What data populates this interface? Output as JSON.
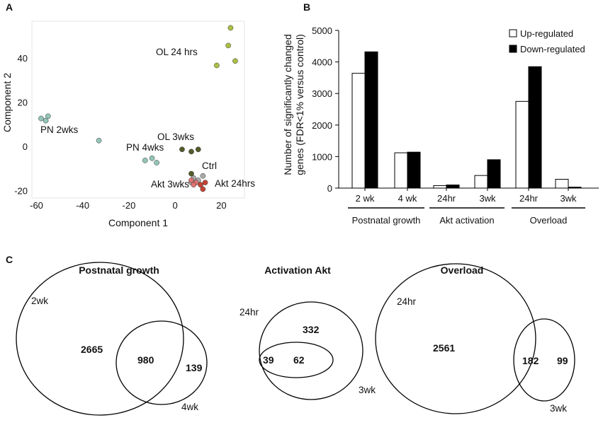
{
  "panels": {
    "a": "A",
    "b": "B",
    "c": "C"
  },
  "chart_data": [
    {
      "type": "scatter",
      "panel": "A",
      "xlabel": "Component 1",
      "ylabel": "Component 2",
      "xlim": [
        -62,
        30
      ],
      "ylim": [
        -23,
        57
      ],
      "xticks": [
        -60,
        -40,
        -20,
        0,
        20
      ],
      "yticks": [
        -20,
        0,
        20,
        40
      ],
      "grid": false,
      "series": [
        {
          "name": "OL 24 hrs",
          "color": "#a6ba3a",
          "points": [
            [
              24,
              54
            ],
            [
              23,
              46
            ],
            [
              26,
              39
            ],
            [
              18,
              37
            ]
          ]
        },
        {
          "name": "PN 2wks",
          "color": "#8ec2b4",
          "points": [
            [
              -58,
              13
            ],
            [
              -56,
              12
            ],
            [
              -55,
              14
            ],
            [
              -33,
              3
            ]
          ]
        },
        {
          "name": "PN 4wks",
          "color": "#8ec2b4",
          "points": [
            [
              -13,
              -6
            ],
            [
              -10,
              -5
            ],
            [
              -8,
              -7
            ]
          ]
        },
        {
          "name": "OL 3wks",
          "color": "#4a5220",
          "points": [
            [
              3,
              -1
            ],
            [
              7,
              -2
            ],
            [
              10,
              -1
            ],
            [
              7,
              -12
            ]
          ]
        },
        {
          "name": "Ctrl",
          "color": "#a4a4a4",
          "points": [
            [
              8,
              -14
            ],
            [
              10,
              -15
            ],
            [
              12,
              -13
            ],
            [
              7,
              -16
            ]
          ]
        },
        {
          "name": "Akt 3wks",
          "color": "#e07070",
          "points": [
            [
              7,
              -15
            ],
            [
              9,
              -16
            ],
            [
              8,
              -17
            ]
          ]
        },
        {
          "name": "Akt 24hrs",
          "color": "#c0392b",
          "points": [
            [
              11,
              -17
            ],
            [
              13,
              -16
            ],
            [
              12,
              -19
            ]
          ]
        }
      ],
      "point_labels": [
        "OL 24 hrs",
        "PN 2wks",
        "PN 4wks",
        "OL 3wks",
        "Ctrl",
        "Akt 3wks",
        "Akt 24hrs"
      ]
    },
    {
      "type": "bar",
      "panel": "B",
      "ylabel_lines": [
        "Number of significantly changed",
        "genes (FDR<1% versus control)"
      ],
      "ylim": [
        0,
        5000
      ],
      "yticks": [
        0,
        1000,
        2000,
        3000,
        4000,
        5000
      ],
      "categories": [
        "2 wk",
        "4 wk",
        "24hr",
        "3wk",
        "24hr",
        "3wk"
      ],
      "groups": [
        {
          "label": "Postnatal growth",
          "span": [
            0,
            1
          ]
        },
        {
          "label": "Akt activation",
          "span": [
            2,
            3
          ]
        },
        {
          "label": "Overload",
          "span": [
            4,
            5
          ]
        }
      ],
      "series": [
        {
          "name": "Up-regulated",
          "color": "#ffffff",
          "values": [
            3640,
            1120,
            80,
            400,
            2750,
            280
          ]
        },
        {
          "name": "Down-regulated",
          "color": "#000000",
          "values": [
            4320,
            1140,
            100,
            900,
            3850,
            30
          ]
        }
      ],
      "legend": "top-right"
    }
  ],
  "venn": [
    {
      "title": "Postnatal growth",
      "sets": [
        "2wk",
        "4wk"
      ],
      "only_a": "2665",
      "both": "980",
      "only_b": "139"
    },
    {
      "title": "Activation Akt",
      "sets": [
        "24hr",
        "3wk"
      ],
      "only_a": "39",
      "both": "62",
      "only_b": "332"
    },
    {
      "title": "Overload",
      "sets": [
        "24hr",
        "3wk"
      ],
      "only_a": "2561",
      "both": "182",
      "only_b": "99"
    }
  ]
}
